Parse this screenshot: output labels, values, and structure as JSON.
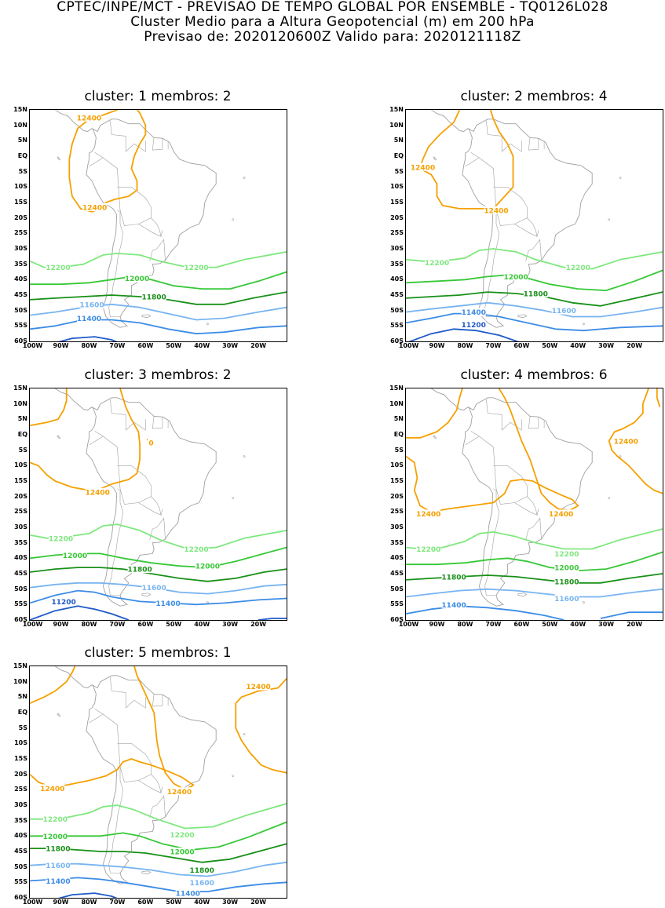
{
  "header": {
    "line1": "CPTEC/INPE/MCT - PREVISAO DE TEMPO GLOBAL POR ENSEMBLE - TQ0126L028",
    "line2": "Cluster Medio para a Altura Geopotencial (m) em 200 hPa",
    "line3": "Previsao de: 2020120600Z    Valido para: 2020121118Z"
  },
  "axes": {
    "lat_labels": [
      "15N",
      "10N",
      "5N",
      "EQ",
      "5S",
      "10S",
      "15S",
      "20S",
      "25S",
      "30S",
      "35S",
      "40S",
      "45S",
      "50S",
      "55S",
      "60S"
    ],
    "lon_labels": [
      "100W",
      "90W",
      "80W",
      "70W",
      "60W",
      "50W",
      "40W",
      "30W",
      "20W"
    ]
  },
  "colors": {
    "c12400": "#f5a000",
    "c12200": "#7ee87e",
    "c12000": "#37c837",
    "c11800": "#189018",
    "c11600": "#78b4f0",
    "c11400": "#3c8ce6",
    "c11200": "#1e5ac8",
    "coast": "#a0a0a0"
  },
  "panels": [
    {
      "title": "cluster: 1   membros: 2",
      "labels": [
        {
          "t": "12400",
          "c": "c12400",
          "x": -80,
          "y": 12.5
        },
        {
          "t": "12400",
          "c": "c12400",
          "x": -78,
          "y": -16.5
        },
        {
          "t": "12200",
          "c": "c12200",
          "x": -91,
          "y": -36
        },
        {
          "t": "12200",
          "c": "c12200",
          "x": -42,
          "y": -36
        },
        {
          "t": "12000",
          "c": "c12000",
          "x": -63,
          "y": -39.5
        },
        {
          "t": "11800",
          "c": "c11800",
          "x": -57,
          "y": -45.5
        },
        {
          "t": "11600",
          "c": "c11600",
          "x": -79,
          "y": -48
        },
        {
          "t": "11400",
          "c": "c11400",
          "x": -80,
          "y": -52.5
        }
      ]
    },
    {
      "title": "cluster: 2   membros: 4",
      "labels": [
        {
          "t": "12400",
          "c": "c12400",
          "x": -95,
          "y": -3.5
        },
        {
          "t": "12400",
          "c": "c12400",
          "x": -69,
          "y": -17.5
        },
        {
          "t": "12200",
          "c": "c12200",
          "x": -90,
          "y": -34.5
        },
        {
          "t": "12200",
          "c": "c12200",
          "x": -40,
          "y": -36
        },
        {
          "t": "12000",
          "c": "c12000",
          "x": -62,
          "y": -39
        },
        {
          "t": "11800",
          "c": "c11800",
          "x": -55,
          "y": -44.5
        },
        {
          "t": "11600",
          "c": "c11600",
          "x": -45,
          "y": -50
        },
        {
          "t": "11400",
          "c": "c11400",
          "x": -77,
          "y": -50.5
        },
        {
          "t": "11200",
          "c": "c11200",
          "x": -77,
          "y": -54.5
        }
      ]
    },
    {
      "title": "cluster: 3   membros: 2",
      "labels": [
        {
          "t": "12400",
          "c": "c12400",
          "x": -77,
          "y": -18.5
        },
        {
          "t": "0",
          "c": "c12400",
          "x": -58,
          "y": -2.5
        },
        {
          "t": "12200",
          "c": "c12200",
          "x": -90,
          "y": -33.5
        },
        {
          "t": "12200",
          "c": "c12200",
          "x": -42,
          "y": -37
        },
        {
          "t": "12000",
          "c": "c12000",
          "x": -85,
          "y": -39
        },
        {
          "t": "12000",
          "c": "c12000",
          "x": -38,
          "y": -42.5
        },
        {
          "t": "11800",
          "c": "c11800",
          "x": -62,
          "y": -43.5
        },
        {
          "t": "11600",
          "c": "c11600",
          "x": -57,
          "y": -49.5
        },
        {
          "t": "11400",
          "c": "c11400",
          "x": -52,
          "y": -54.5
        },
        {
          "t": "11200",
          "c": "c11200",
          "x": -89,
          "y": -54
        }
      ]
    },
    {
      "title": "cluster: 4   membros: 6",
      "labels": [
        {
          "t": "12400",
          "c": "c12400",
          "x": -93,
          "y": -25.5
        },
        {
          "t": "12400",
          "c": "c12400",
          "x": -46,
          "y": -25.5
        },
        {
          "t": "12400",
          "c": "c12400",
          "x": -23,
          "y": -2
        },
        {
          "t": "12200",
          "c": "c12200",
          "x": -93,
          "y": -37
        },
        {
          "t": "12200",
          "c": "c12200",
          "x": -44,
          "y": -38.5
        },
        {
          "t": "12000",
          "c": "c12000",
          "x": -44,
          "y": -43
        },
        {
          "t": "11800",
          "c": "c11800",
          "x": -84,
          "y": -46
        },
        {
          "t": "11800",
          "c": "c11800",
          "x": -44,
          "y": -47.5
        },
        {
          "t": "11600",
          "c": "c11600",
          "x": -44,
          "y": -53
        },
        {
          "t": "11400",
          "c": "c11400",
          "x": -84,
          "y": -55
        }
      ]
    },
    {
      "title": "cluster: 5   membros: 1",
      "labels": [
        {
          "t": "12400",
          "c": "c12400",
          "x": -93,
          "y": -24.5
        },
        {
          "t": "12400",
          "c": "c12400",
          "x": -48,
          "y": -25.5
        },
        {
          "t": "12400",
          "c": "c12400",
          "x": -20,
          "y": 8.5
        },
        {
          "t": "12200",
          "c": "c12200",
          "x": -92,
          "y": -34.5
        },
        {
          "t": "12200",
          "c": "c12200",
          "x": -47,
          "y": -39.5
        },
        {
          "t": "12000",
          "c": "c12000",
          "x": -92,
          "y": -40
        },
        {
          "t": "12000",
          "c": "c12000",
          "x": -47,
          "y": -45
        },
        {
          "t": "11800",
          "c": "c11800",
          "x": -91,
          "y": -44
        },
        {
          "t": "11800",
          "c": "c11800",
          "x": -40,
          "y": -51
        },
        {
          "t": "11600",
          "c": "c11600",
          "x": -91,
          "y": -49.5
        },
        {
          "t": "11600",
          "c": "c11600",
          "x": -40,
          "y": -55
        },
        {
          "t": "11400",
          "c": "c11400",
          "x": -91,
          "y": -54.5
        },
        {
          "t": "11400",
          "c": "c11400",
          "x": -45,
          "y": -58.5
        }
      ]
    }
  ]
}
